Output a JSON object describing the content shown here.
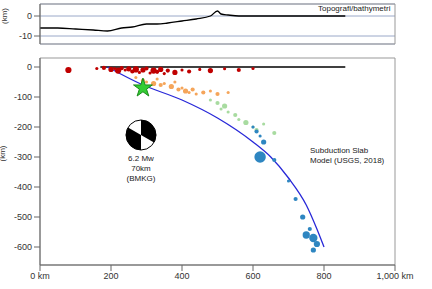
{
  "chart_data": [
    {
      "type": "line",
      "y_label": "(km)",
      "annotations": [
        "Topografi/bathymetri"
      ],
      "xlim": [
        0,
        1000
      ],
      "ylim": [
        -14,
        6
      ],
      "yticks": [
        0,
        -10
      ],
      "tick_labels": "y",
      "grid": true,
      "series": [
        {
          "type": "line",
          "color": "#000000",
          "x": [
            0,
            50,
            100,
            150,
            190,
            230,
            260,
            300,
            330,
            360,
            400,
            440,
            480,
            500,
            510,
            530,
            560,
            600,
            700,
            800,
            860
          ],
          "values": [
            -6,
            -6,
            -6.5,
            -7,
            -7.5,
            -6,
            -5.5,
            -4,
            -4,
            -3.5,
            -2.5,
            -1.5,
            0,
            2.5,
            1,
            0.5,
            0,
            0,
            0,
            0,
            0
          ]
        }
      ]
    },
    {
      "type": "scatter",
      "y_label": "(km)",
      "annotations": [
        "6.2 Mw",
        "70km",
        "(BMKG)"
      ],
      "xlim": [
        0,
        1000
      ],
      "ylim": [
        -660,
        30
      ],
      "xticks": [
        {
          "value": 0,
          "label": "0 km"
        },
        200,
        400,
        600,
        800,
        {
          "value": 1000,
          "label": "1,000 km"
        }
      ],
      "yticks": [
        0,
        -100,
        -200,
        -300,
        -400,
        -500,
        -600
      ],
      "grid": false,
      "series": [
        {
          "type": "line",
          "color": "#000000",
          "x": [
            170,
            860
          ],
          "values": [
            0,
            0
          ]
        },
        {
          "type": "scatter",
          "marker": "circle",
          "color": "#c00000",
          "x": [
            80,
            160,
            180,
            200,
            210,
            220,
            230,
            240,
            250,
            260,
            270,
            280,
            290,
            300,
            310,
            320,
            330,
            340,
            350,
            360,
            380,
            400,
            420,
            450,
            480,
            520,
            560,
            600
          ],
          "values": [
            -10,
            -5,
            -3,
            -8,
            -5,
            -12,
            -4,
            -10,
            -6,
            -15,
            -8,
            -18,
            -10,
            -5,
            -20,
            -12,
            -16,
            -8,
            -22,
            -12,
            -18,
            -10,
            -15,
            -8,
            -12,
            -6,
            -10,
            -5
          ],
          "sizes": [
            5.6,
            5,
            5.2,
            5.4,
            5,
            5.6,
            5.2,
            5,
            5.4,
            5.2,
            5.6,
            5,
            5.4,
            5.2,
            5,
            5.6,
            5.2,
            5.4,
            5,
            5.2,
            5.4,
            5,
            5.2,
            5,
            5.4,
            5,
            5.2,
            5
          ]
        },
        {
          "type": "scatter",
          "marker": "circle",
          "color": "#f5a55a",
          "x": [
            270,
            290,
            300,
            320,
            330,
            340,
            350,
            370,
            380,
            390,
            400,
            410,
            420,
            430,
            440,
            460,
            480,
            500,
            530
          ],
          "values": [
            -35,
            -45,
            -50,
            -55,
            -40,
            -60,
            -55,
            -65,
            -50,
            -75,
            -70,
            -80,
            -85,
            -75,
            -90,
            -85,
            -80,
            -90,
            -85
          ],
          "sizes": [
            5,
            5.2,
            5,
            5.4,
            5,
            5.2,
            5,
            5.4,
            5,
            5.2,
            5,
            5.4,
            5,
            5.2,
            5,
            5.2,
            5,
            5.2,
            5
          ]
        },
        {
          "type": "scatter",
          "marker": "circle",
          "color": "#a8dba0",
          "x": [
            480,
            500,
            510,
            520,
            530,
            550,
            560,
            580,
            600,
            610,
            630,
            660
          ],
          "values": [
            -110,
            -120,
            -140,
            -130,
            -150,
            -160,
            -175,
            -185,
            -200,
            -210,
            -190,
            -220
          ],
          "sizes": [
            5,
            5.2,
            5,
            5.4,
            5,
            5.2,
            5,
            5.4,
            5,
            5.2,
            5,
            5.2
          ]
        },
        {
          "type": "scatter",
          "marker": "circle",
          "color": "#2e86c1",
          "x": [
            600,
            610,
            620,
            630,
            620,
            660,
            700,
            720,
            740,
            750,
            760,
            770,
            780,
            770
          ],
          "values": [
            -200,
            -215,
            -230,
            -250,
            -300,
            -310,
            -380,
            -440,
            -500,
            -560,
            -540,
            -570,
            -590,
            -610
          ],
          "sizes": [
            5,
            5.2,
            5,
            5.4,
            6.6,
            5.2,
            5,
            5.2,
            5.4,
            5.8,
            5.2,
            6,
            5.6,
            5.4
          ]
        },
        {
          "type": "line",
          "name": "Subduction Slab Model (USGS, 2018)",
          "color": "#2828d8",
          "x": [
            190,
            290,
            400,
            500,
            600,
            650,
            700,
            750,
            780,
            800
          ],
          "values": [
            0,
            -60,
            -110,
            -170,
            -250,
            -300,
            -370,
            -460,
            -540,
            -600
          ]
        },
        {
          "type": "scatter",
          "marker": "star",
          "color": "#33cc33",
          "x": [
            290
          ],
          "values": [
            -70
          ]
        }
      ]
    }
  ]
}
